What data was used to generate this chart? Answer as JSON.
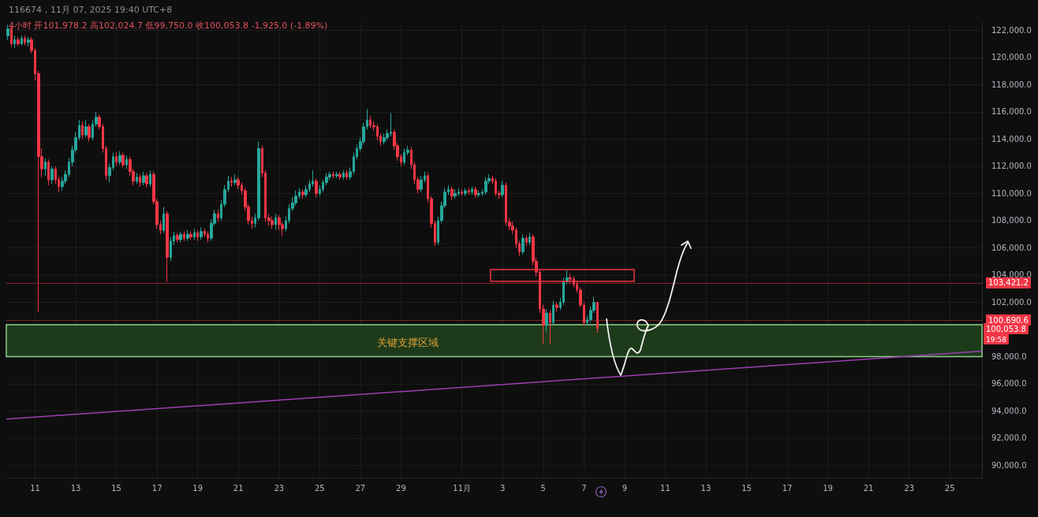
{
  "chart_data": {
    "type": "candlestick",
    "title": "116674，11月 07, 2025 19:40 UTC+8",
    "subtitle": "4小时 开101,978.2 高102,024.7 低99,750.0 收100,053.8 -1,925.0 (-1.89%)",
    "x": [
      "2025-10-09T16:00",
      "2025-10-09T20:00",
      "2025-10-10T00:00",
      "2025-10-10T04:00",
      "2025-10-10T08:00",
      "2025-10-10T12:00",
      "2025-10-10T16:00",
      "2025-10-10T20:00",
      "2025-10-11T00:00",
      "2025-10-11T04:00",
      "2025-10-11T08:00",
      "2025-10-11T12:00",
      "2025-10-11T16:00",
      "2025-10-11T20:00",
      "2025-10-12T00:00",
      "2025-10-12T04:00",
      "2025-10-12T08:00",
      "2025-10-12T12:00",
      "2025-10-12T16:00",
      "2025-10-12T20:00",
      "2025-10-13T00:00",
      "2025-10-13T04:00",
      "2025-10-13T08:00",
      "2025-10-13T12:00",
      "2025-10-13T16:00",
      "2025-10-13T20:00",
      "2025-10-14T00:00",
      "2025-10-14T04:00",
      "2025-10-14T08:00",
      "2025-10-14T12:00",
      "2025-10-14T16:00",
      "2025-10-14T20:00",
      "2025-10-15T00:00",
      "2025-10-15T04:00",
      "2025-10-15T08:00",
      "2025-10-15T12:00",
      "2025-10-15T16:00",
      "2025-10-15T20:00",
      "2025-10-16T00:00",
      "2025-10-16T04:00",
      "2025-10-16T08:00",
      "2025-10-16T12:00",
      "2025-10-16T16:00",
      "2025-10-16T20:00",
      "2025-10-17T00:00",
      "2025-10-17T04:00",
      "2025-10-17T08:00",
      "2025-10-17T12:00",
      "2025-10-17T16:00",
      "2025-10-17T20:00",
      "2025-10-18T00:00",
      "2025-10-18T04:00",
      "2025-10-18T08:00",
      "2025-10-18T12:00",
      "2025-10-18T16:00",
      "2025-10-18T20:00",
      "2025-10-19T00:00",
      "2025-10-19T04:00",
      "2025-10-19T08:00",
      "2025-10-19T12:00",
      "2025-10-19T16:00",
      "2025-10-19T20:00",
      "2025-10-20T00:00",
      "2025-10-20T04:00",
      "2025-10-20T08:00",
      "2025-10-20T12:00",
      "2025-10-20T16:00",
      "2025-10-20T20:00",
      "2025-10-21T00:00",
      "2025-10-21T04:00",
      "2025-10-21T08:00",
      "2025-10-21T12:00",
      "2025-10-21T16:00",
      "2025-10-21T20:00",
      "2025-10-22T00:00",
      "2025-10-22T04:00",
      "2025-10-22T08:00",
      "2025-10-22T12:00",
      "2025-10-22T16:00",
      "2025-10-22T20:00",
      "2025-10-23T00:00",
      "2025-10-23T04:00",
      "2025-10-23T08:00",
      "2025-10-23T12:00",
      "2025-10-23T16:00",
      "2025-10-23T20:00",
      "2025-10-24T00:00",
      "2025-10-24T04:00",
      "2025-10-24T08:00",
      "2025-10-24T12:00",
      "2025-10-24T16:00",
      "2025-10-24T20:00",
      "2025-10-25T00:00",
      "2025-10-25T04:00",
      "2025-10-25T08:00",
      "2025-10-25T12:00",
      "2025-10-25T16:00",
      "2025-10-25T20:00",
      "2025-10-26T00:00",
      "2025-10-26T04:00",
      "2025-10-26T08:00",
      "2025-10-26T12:00",
      "2025-10-26T16:00",
      "2025-10-26T20:00",
      "2025-10-27T00:00",
      "2025-10-27T04:00",
      "2025-10-27T08:00",
      "2025-10-27T12:00",
      "2025-10-27T16:00",
      "2025-10-27T20:00",
      "2025-10-28T00:00",
      "2025-10-28T04:00",
      "2025-10-28T08:00",
      "2025-10-28T12:00",
      "2025-10-28T16:00",
      "2025-10-28T20:00",
      "2025-10-29T00:00",
      "2025-10-29T04:00",
      "2025-10-29T08:00",
      "2025-10-29T12:00",
      "2025-10-29T16:00",
      "2025-10-29T20:00",
      "2025-10-30T00:00",
      "2025-10-30T04:00",
      "2025-10-30T08:00",
      "2025-10-30T12:00",
      "2025-10-30T16:00",
      "2025-10-30T20:00",
      "2025-10-31T00:00",
      "2025-10-31T04:00",
      "2025-10-31T08:00",
      "2025-10-31T12:00",
      "2025-10-31T16:00",
      "2025-10-31T20:00",
      "2025-11-01T00:00",
      "2025-11-01T04:00",
      "2025-11-01T08:00",
      "2025-11-01T12:00",
      "2025-11-01T16:00",
      "2025-11-01T20:00",
      "2025-11-02T00:00",
      "2025-11-02T04:00",
      "2025-11-02T08:00",
      "2025-11-02T12:00",
      "2025-11-02T16:00",
      "2025-11-02T20:00",
      "2025-11-03T00:00",
      "2025-11-03T04:00",
      "2025-11-03T08:00",
      "2025-11-03T12:00",
      "2025-11-03T16:00",
      "2025-11-03T20:00",
      "2025-11-04T00:00",
      "2025-11-04T04:00",
      "2025-11-04T08:00",
      "2025-11-04T12:00",
      "2025-11-04T16:00",
      "2025-11-04T20:00",
      "2025-11-05T00:00",
      "2025-11-05T04:00",
      "2025-11-05T08:00",
      "2025-11-05T12:00",
      "2025-11-05T16:00",
      "2025-11-05T20:00",
      "2025-11-06T00:00",
      "2025-11-06T04:00",
      "2025-11-06T08:00",
      "2025-11-06T12:00",
      "2025-11-06T16:00",
      "2025-11-06T20:00",
      "2025-11-07T00:00",
      "2025-11-07T04:00",
      "2025-11-07T08:00",
      "2025-11-07T12:00",
      "2025-11-07T16:00"
    ],
    "ohlc": [
      [
        121600,
        122400,
        121300,
        122100
      ],
      [
        122100,
        122300,
        120800,
        121000
      ],
      [
        121000,
        121600,
        120700,
        121300
      ],
      [
        121300,
        121500,
        120800,
        121000
      ],
      [
        121000,
        121600,
        120900,
        121400
      ],
      [
        121400,
        121600,
        120900,
        121100
      ],
      [
        121100,
        121500,
        120800,
        121300
      ],
      [
        121300,
        121500,
        120300,
        120500
      ],
      [
        120500,
        120700,
        118300,
        118800
      ],
      [
        118800,
        119000,
        101300,
        112700
      ],
      [
        112700,
        113300,
        111200,
        111800
      ],
      [
        111800,
        112600,
        111300,
        112300
      ],
      [
        112300,
        112500,
        110600,
        111000
      ],
      [
        111000,
        112000,
        110700,
        111800
      ],
      [
        111800,
        112000,
        110700,
        111000
      ],
      [
        111000,
        111200,
        110100,
        110500
      ],
      [
        110500,
        111200,
        110200,
        110900
      ],
      [
        110900,
        111700,
        110700,
        111400
      ],
      [
        111400,
        112600,
        111200,
        112300
      ],
      [
        112300,
        113500,
        112000,
        113200
      ],
      [
        113200,
        114500,
        113000,
        114100
      ],
      [
        114100,
        115400,
        113900,
        115000
      ],
      [
        115000,
        115300,
        114000,
        114300
      ],
      [
        114300,
        115400,
        114100,
        114900
      ],
      [
        114900,
        115100,
        113800,
        114100
      ],
      [
        114100,
        115400,
        113900,
        115100
      ],
      [
        115100,
        116000,
        114900,
        115600
      ],
      [
        115600,
        115800,
        114700,
        114900
      ],
      [
        114900,
        115100,
        113000,
        113300
      ],
      [
        113300,
        113500,
        111000,
        111300
      ],
      [
        111300,
        112200,
        110800,
        111900
      ],
      [
        111900,
        113000,
        111700,
        112700
      ],
      [
        112700,
        113000,
        112000,
        112300
      ],
      [
        112300,
        113100,
        112100,
        112800
      ],
      [
        112800,
        113000,
        111900,
        112100
      ],
      [
        112100,
        112800,
        111800,
        112500
      ],
      [
        112500,
        112700,
        111300,
        111600
      ],
      [
        111600,
        111800,
        110600,
        110900
      ],
      [
        110900,
        111500,
        110700,
        111200
      ],
      [
        111200,
        111400,
        110500,
        110800
      ],
      [
        110800,
        111600,
        110600,
        111300
      ],
      [
        111300,
        111500,
        110400,
        110700
      ],
      [
        110700,
        111700,
        110500,
        111400
      ],
      [
        111400,
        111600,
        109200,
        109400
      ],
      [
        109400,
        109600,
        107400,
        107700
      ],
      [
        107700,
        108000,
        107000,
        107300
      ],
      [
        107300,
        109000,
        107100,
        108500
      ],
      [
        108500,
        108700,
        103500,
        105300
      ],
      [
        105300,
        106800,
        105000,
        106500
      ],
      [
        106500,
        107200,
        106200,
        106900
      ],
      [
        106900,
        107100,
        106400,
        106600
      ],
      [
        106600,
        107200,
        106400,
        107000
      ],
      [
        107000,
        107200,
        106500,
        106700
      ],
      [
        106700,
        107300,
        106500,
        107000
      ],
      [
        107000,
        107200,
        106600,
        106800
      ],
      [
        106800,
        107400,
        106600,
        107100
      ],
      [
        107100,
        107300,
        106500,
        106800
      ],
      [
        106800,
        107500,
        106600,
        107200
      ],
      [
        107200,
        107400,
        106800,
        107000
      ],
      [
        107000,
        107200,
        106400,
        106700
      ],
      [
        106700,
        108100,
        106500,
        107800
      ],
      [
        107800,
        108800,
        107600,
        108500
      ],
      [
        108500,
        108800,
        107900,
        108200
      ],
      [
        108200,
        109500,
        108000,
        109200
      ],
      [
        109200,
        110600,
        109000,
        110300
      ],
      [
        110300,
        111300,
        110100,
        110900
      ],
      [
        110900,
        111200,
        110500,
        110800
      ],
      [
        110800,
        111400,
        110600,
        111000
      ],
      [
        111000,
        111200,
        110300,
        110600
      ],
      [
        110600,
        110800,
        109900,
        110200
      ],
      [
        110200,
        110400,
        108700,
        109000
      ],
      [
        109000,
        109200,
        107700,
        108000
      ],
      [
        108000,
        108300,
        107400,
        107800
      ],
      [
        107800,
        108500,
        107500,
        108200
      ],
      [
        108200,
        113800,
        108000,
        113300
      ],
      [
        113300,
        113500,
        111200,
        111500
      ],
      [
        111500,
        111700,
        107900,
        108200
      ],
      [
        108200,
        108500,
        107600,
        108000
      ],
      [
        108000,
        108300,
        107400,
        107700
      ],
      [
        107700,
        108500,
        107300,
        108200
      ],
      [
        108200,
        108400,
        107300,
        107700
      ],
      [
        107700,
        107900,
        106900,
        107400
      ],
      [
        107400,
        108300,
        107200,
        108000
      ],
      [
        108000,
        109200,
        107800,
        108900
      ],
      [
        108900,
        109700,
        108700,
        109300
      ],
      [
        109300,
        110200,
        109100,
        109800
      ],
      [
        109800,
        110400,
        109600,
        110100
      ],
      [
        110100,
        110300,
        109600,
        109900
      ],
      [
        109900,
        110600,
        109700,
        110300
      ],
      [
        110300,
        111000,
        110100,
        110700
      ],
      [
        110700,
        111700,
        110500,
        110900
      ],
      [
        110900,
        111100,
        109700,
        110000
      ],
      [
        110000,
        110600,
        109800,
        110300
      ],
      [
        110300,
        111000,
        110100,
        110800
      ],
      [
        110800,
        111500,
        110600,
        111200
      ],
      [
        111200,
        111600,
        111000,
        111400
      ],
      [
        111400,
        111600,
        111100,
        111300
      ],
      [
        111300,
        111600,
        111100,
        111400
      ],
      [
        111400,
        111600,
        111000,
        111200
      ],
      [
        111200,
        111700,
        111000,
        111500
      ],
      [
        111500,
        111700,
        111000,
        111200
      ],
      [
        111200,
        111900,
        111000,
        111600
      ],
      [
        111600,
        113000,
        111400,
        112700
      ],
      [
        112700,
        113600,
        112500,
        113300
      ],
      [
        113300,
        114100,
        113100,
        113800
      ],
      [
        113800,
        115200,
        113600,
        114900
      ],
      [
        114900,
        116200,
        114700,
        115400
      ],
      [
        115400,
        115700,
        114800,
        115000
      ],
      [
        115000,
        115300,
        114600,
        114900
      ],
      [
        114900,
        115100,
        113900,
        114200
      ],
      [
        114200,
        114400,
        113500,
        113800
      ],
      [
        113800,
        114400,
        113600,
        114100
      ],
      [
        114100,
        114700,
        113900,
        114400
      ],
      [
        114400,
        115900,
        114200,
        114500
      ],
      [
        114500,
        114700,
        113200,
        113500
      ],
      [
        113500,
        113700,
        112400,
        112700
      ],
      [
        112700,
        112900,
        112000,
        112300
      ],
      [
        112300,
        113300,
        112100,
        113000
      ],
      [
        113000,
        113500,
        112800,
        113200
      ],
      [
        113200,
        113400,
        111800,
        112100
      ],
      [
        112100,
        112300,
        110700,
        111000
      ],
      [
        111000,
        111200,
        110000,
        110300
      ],
      [
        110300,
        111300,
        110100,
        111000
      ],
      [
        111000,
        111600,
        110800,
        111300
      ],
      [
        111300,
        111500,
        109300,
        109600
      ],
      [
        109600,
        109800,
        107500,
        107800
      ],
      [
        107800,
        108000,
        106100,
        106400
      ],
      [
        106400,
        108300,
        106200,
        108000
      ],
      [
        108000,
        109400,
        107800,
        109100
      ],
      [
        109100,
        110400,
        108900,
        110100
      ],
      [
        110100,
        110600,
        109900,
        110300
      ],
      [
        110300,
        110500,
        109500,
        109800
      ],
      [
        109800,
        110300,
        109600,
        110000
      ],
      [
        110000,
        110400,
        109800,
        110100
      ],
      [
        110100,
        110300,
        109800,
        110000
      ],
      [
        110000,
        110400,
        109800,
        110200
      ],
      [
        110200,
        110400,
        109900,
        110100
      ],
      [
        110100,
        110500,
        109900,
        110300
      ],
      [
        110300,
        110500,
        109700,
        109900
      ],
      [
        109900,
        110200,
        109700,
        110000
      ],
      [
        110000,
        110300,
        109800,
        110100
      ],
      [
        110100,
        111200,
        109900,
        110900
      ],
      [
        110900,
        111400,
        110700,
        111100
      ],
      [
        111100,
        111300,
        110700,
        110900
      ],
      [
        110900,
        111100,
        109800,
        110000
      ],
      [
        110000,
        110200,
        109600,
        109900
      ],
      [
        109900,
        110900,
        109700,
        110600
      ],
      [
        110600,
        110800,
        107600,
        107900
      ],
      [
        107900,
        108200,
        107300,
        107600
      ],
      [
        107600,
        107900,
        107000,
        107300
      ],
      [
        107300,
        107500,
        106000,
        106300
      ],
      [
        106300,
        106500,
        105400,
        105700
      ],
      [
        105700,
        107000,
        105500,
        106700
      ],
      [
        106700,
        106900,
        106100,
        106400
      ],
      [
        106400,
        107100,
        106200,
        106800
      ],
      [
        106800,
        107000,
        104700,
        105000
      ],
      [
        105000,
        105300,
        103900,
        104200
      ],
      [
        104200,
        104400,
        101200,
        101500
      ],
      [
        101500,
        101800,
        98900,
        100300
      ],
      [
        100300,
        101500,
        99800,
        101200
      ],
      [
        101200,
        101400,
        98900,
        100500
      ],
      [
        100500,
        102100,
        100300,
        101800
      ],
      [
        101800,
        102000,
        101300,
        101600
      ],
      [
        101600,
        102300,
        101400,
        102000
      ],
      [
        102000,
        103800,
        101800,
        103500
      ],
      [
        103500,
        104400,
        103300,
        103800
      ],
      [
        103800,
        104100,
        103400,
        103700
      ],
      [
        103700,
        103900,
        103100,
        103300
      ],
      [
        103300,
        103500,
        102700,
        102900
      ],
      [
        102900,
        103100,
        101600,
        101800
      ],
      [
        101800,
        102000,
        100300,
        100500
      ],
      [
        100500,
        101000,
        100300,
        100700
      ],
      [
        100700,
        101700,
        100500,
        101400
      ],
      [
        101400,
        102400,
        101200,
        101978.2
      ],
      [
        101978.2,
        102024.7,
        99750,
        100053.8
      ]
    ],
    "colors": [
      "#26a69a",
      "#f23645",
      "#26a69a",
      "#f23645",
      "#26a69a",
      "#f23645",
      "#26a69a",
      "#f23645",
      "#f23645",
      "#f23645",
      "#f23645",
      "#26a69a",
      "#f23645",
      "#26a69a",
      "#f23645",
      "#f23645",
      "#26a69a",
      "#26a69a",
      "#26a69a",
      "#26a69a",
      "#26a69a",
      "#26a69a",
      "#f23645",
      "#26a69a",
      "#f23645",
      "#26a69a",
      "#26a69a",
      "#f23645",
      "#f23645",
      "#f23645",
      "#26a69a",
      "#26a69a",
      "#f23645",
      "#26a69a",
      "#f23645",
      "#26a69a",
      "#f23645",
      "#f23645",
      "#26a69a",
      "#f23645",
      "#26a69a",
      "#f23645",
      "#26a69a",
      "#f23645",
      "#f23645",
      "#f23645",
      "#26a69a",
      "#f23645",
      "#26a69a",
      "#26a69a",
      "#f23645",
      "#26a69a",
      "#f23645",
      "#26a69a",
      "#f23645",
      "#26a69a",
      "#f23645",
      "#26a69a",
      "#f23645",
      "#f23645",
      "#26a69a",
      "#26a69a",
      "#f23645",
      "#26a69a",
      "#26a69a",
      "#26a69a",
      "#f23645",
      "#26a69a",
      "#f23645",
      "#f23645",
      "#f23645",
      "#f23645",
      "#f23645",
      "#26a69a",
      "#26a69a",
      "#f23645",
      "#f23645",
      "#f23645",
      "#f23645",
      "#26a69a",
      "#f23645",
      "#f23645",
      "#26a69a",
      "#26a69a",
      "#26a69a",
      "#26a69a",
      "#26a69a",
      "#f23645",
      "#26a69a",
      "#26a69a",
      "#26a69a",
      "#f23645",
      "#26a69a",
      "#26a69a",
      "#26a69a",
      "#26a69a",
      "#f23645",
      "#26a69a",
      "#f23645",
      "#26a69a",
      "#f23645",
      "#26a69a",
      "#26a69a",
      "#26a69a",
      "#26a69a",
      "#26a69a",
      "#26a69a",
      "#f23645",
      "#f23645",
      "#f23645",
      "#f23645",
      "#26a69a",
      "#26a69a",
      "#26a69a",
      "#f23645",
      "#f23645",
      "#f23645",
      "#26a69a",
      "#26a69a",
      "#f23645",
      "#f23645",
      "#f23645",
      "#26a69a",
      "#26a69a",
      "#f23645",
      "#f23645",
      "#f23645",
      "#26a69a",
      "#26a69a",
      "#26a69a",
      "#26a69a",
      "#f23645",
      "#26a69a",
      "#26a69a",
      "#f23645",
      "#26a69a",
      "#f23645",
      "#26a69a",
      "#f23645",
      "#26a69a",
      "#26a69a",
      "#26a69a",
      "#26a69a",
      "#f23645",
      "#f23645",
      "#f23645",
      "#26a69a",
      "#f23645",
      "#f23645",
      "#f23645",
      "#f23645",
      "#f23645",
      "#26a69a",
      "#f23645",
      "#26a69a",
      "#f23645",
      "#f23645",
      "#f23645",
      "#f23645",
      "#26a69a",
      "#f23645",
      "#26a69a",
      "#f23645",
      "#26a69a",
      "#26a69a",
      "#26a69a",
      "#f23645",
      "#f23645",
      "#f23645",
      "#f23645",
      "#f23645",
      "#26a69a",
      "#26a69a",
      "#26a69a",
      "#f23645"
    ],
    "series": [
      {
        "type": "line",
        "color": "#9c3fb0",
        "x": [
          "2025-10-09T14:00",
          "2025-11-26T14:00"
        ],
        "values": [
          93400,
          98400
        ]
      }
    ],
    "xlim": [
      "2025-10-09T14:00",
      "2025-11-26T14:00"
    ],
    "xticks": [
      {
        "value": "2025-10-11",
        "label": "11"
      },
      {
        "value": "2025-10-13",
        "label": "13"
      },
      {
        "value": "2025-10-15",
        "label": "15"
      },
      {
        "value": "2025-10-17",
        "label": "17"
      },
      {
        "value": "2025-10-19",
        "label": "19"
      },
      {
        "value": "2025-10-21",
        "label": "21"
      },
      {
        "value": "2025-10-23",
        "label": "23"
      },
      {
        "value": "2025-10-25",
        "label": "25"
      },
      {
        "value": "2025-10-27",
        "label": "27"
      },
      {
        "value": "2025-10-29",
        "label": "29"
      },
      {
        "value": "2025-11-01",
        "label": "11月"
      },
      {
        "value": "2025-11-03",
        "label": "3"
      },
      {
        "value": "2025-11-05",
        "label": "5"
      },
      {
        "value": "2025-11-07",
        "label": "7"
      },
      {
        "value": "2025-11-09",
        "label": "9"
      },
      {
        "value": "2025-11-11",
        "label": "11"
      },
      {
        "value": "2025-11-13",
        "label": "13"
      },
      {
        "value": "2025-11-15",
        "label": "15"
      },
      {
        "value": "2025-11-17",
        "label": "17"
      },
      {
        "value": "2025-11-19",
        "label": "19"
      },
      {
        "value": "2025-11-21",
        "label": "21"
      },
      {
        "value": "2025-11-23",
        "label": "23"
      },
      {
        "value": "2025-11-25",
        "label": "25"
      }
    ],
    "ylim": [
      89100,
      122600
    ],
    "yticks": [
      {
        "value": 90000,
        "label": "90,000.0"
      },
      {
        "value": 92000,
        "label": "92,000.0"
      },
      {
        "value": 94000,
        "label": "94,000.0"
      },
      {
        "value": 96000,
        "label": "96,000.0"
      },
      {
        "value": 98000,
        "label": "98,000.0"
      },
      {
        "value": 102000,
        "label": "102,000.0"
      },
      {
        "value": 104000,
        "label": "104,000.0"
      },
      {
        "value": 106000,
        "label": "106,000.0"
      },
      {
        "value": 108000,
        "label": "108,000.0"
      },
      {
        "value": 110000,
        "label": "110,000.0"
      },
      {
        "value": 112000,
        "label": "112,000.0"
      },
      {
        "value": 114000,
        "label": "114,000.0"
      },
      {
        "value": 116000,
        "label": "116,000.0"
      },
      {
        "value": 118000,
        "label": "118,000.0"
      },
      {
        "value": 120000,
        "label": "120,000.0"
      },
      {
        "value": 122000,
        "label": "122,000.0"
      }
    ],
    "ref_lines": [
      {
        "axis": "y",
        "value": 103421.2,
        "label": "103,421.2",
        "color": "#f23645",
        "line_style": "dotted"
      },
      {
        "axis": "y",
        "value": 100690.6,
        "label": "100,690.6",
        "color": "#f23645",
        "line_style": "dotted"
      }
    ],
    "bands": [
      {
        "axis": "y",
        "from": 98000,
        "to": 100350,
        "label": "关键支撑区域",
        "color": "#1d3b1b"
      }
    ],
    "annotations": [
      "100,053.8",
      "19:58"
    ],
    "grid": true
  }
}
